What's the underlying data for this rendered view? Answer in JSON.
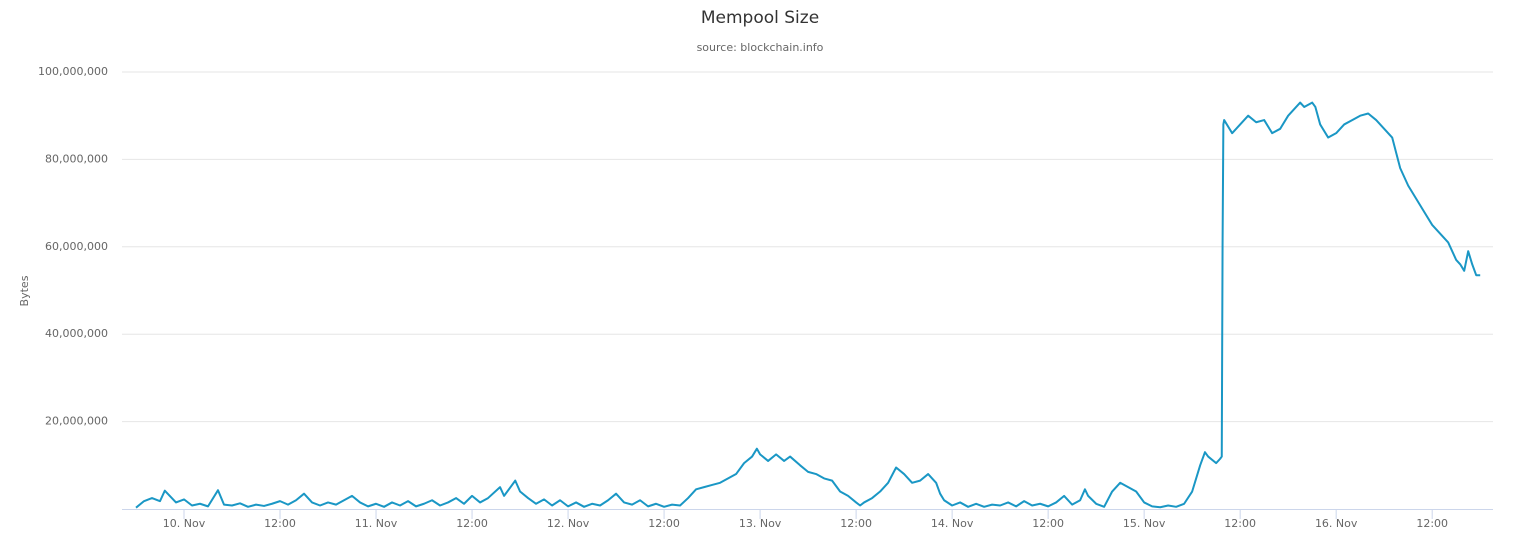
{
  "chart_data": {
    "type": "line",
    "title": "Mempool Size",
    "subtitle": "source: blockchain.info",
    "y_label": "Bytes",
    "color": "#1a97c5",
    "grid": true,
    "xlim": [
      -7.75,
      163.6
    ],
    "ylim": [
      0,
      100000000
    ],
    "xticks": [
      {
        "value": 0,
        "label": "10. Nov"
      },
      {
        "value": 12,
        "label": "12:00"
      },
      {
        "value": 24,
        "label": "11. Nov"
      },
      {
        "value": 36,
        "label": "12:00"
      },
      {
        "value": 48,
        "label": "12. Nov"
      },
      {
        "value": 60,
        "label": "12:00"
      },
      {
        "value": 72,
        "label": "13. Nov"
      },
      {
        "value": 84,
        "label": "12:00"
      },
      {
        "value": 96,
        "label": "14. Nov"
      },
      {
        "value": 108,
        "label": "12:00"
      },
      {
        "value": 120,
        "label": "15. Nov"
      },
      {
        "value": 132,
        "label": "12:00"
      },
      {
        "value": 144,
        "label": "16. Nov"
      },
      {
        "value": 156,
        "label": "12:00"
      }
    ],
    "yticks": [
      {
        "value": 20000000,
        "label": "20,000,000"
      },
      {
        "value": 40000000,
        "label": "40,000,000"
      },
      {
        "value": 60000000,
        "label": "60,000,000"
      },
      {
        "value": 80000000,
        "label": "80,000,000"
      },
      {
        "value": 100000000,
        "label": "100,000,000"
      }
    ],
    "x": [
      -6,
      -5,
      -4,
      -3,
      -2.4,
      -1,
      0,
      1,
      2,
      3,
      4.25,
      5,
      6,
      7,
      8,
      9,
      10,
      11,
      12,
      13,
      14,
      15,
      16,
      17,
      18,
      19,
      20,
      21,
      22,
      23,
      24,
      25,
      26,
      27,
      28,
      29,
      30,
      31,
      32,
      33,
      34,
      35,
      36,
      37,
      38,
      39.5,
      40,
      41.4,
      42,
      43,
      44,
      45,
      46,
      47,
      48,
      49,
      50,
      51,
      52,
      53,
      54,
      55,
      56,
      57,
      58,
      59,
      60,
      61,
      62,
      63,
      64,
      65,
      66,
      67,
      68,
      69,
      70,
      71,
      71.6,
      72,
      73,
      74,
      75,
      75.75,
      77,
      78,
      79,
      80,
      81,
      82,
      83,
      84,
      84.5,
      85,
      86,
      87,
      88,
      89,
      90,
      91,
      92,
      93,
      94,
      94.5,
      95,
      96,
      97,
      98,
      99,
      100,
      101,
      102,
      103,
      104,
      105,
      106,
      107,
      108,
      109,
      110,
      111,
      112,
      112.6,
      113,
      114,
      115,
      116,
      117,
      118,
      119,
      120,
      121,
      122,
      123,
      124,
      125,
      126,
      127,
      127.6,
      128,
      129,
      129.5,
      129.7,
      129.8,
      129.9,
      130,
      131,
      132,
      133,
      134,
      135,
      136,
      137,
      138,
      139.5,
      140,
      141,
      141.4,
      142,
      143,
      144,
      145,
      146,
      147,
      148,
      149,
      150,
      151,
      152,
      153,
      154,
      155,
      156,
      157,
      158,
      159,
      159.5,
      160,
      160.5,
      161,
      161.5,
      162
    ],
    "values": [
      300000,
      1800000,
      2500000,
      1800000,
      4200000,
      1500000,
      2200000,
      800000,
      1200000,
      600000,
      4300000,
      1000000,
      800000,
      1300000,
      500000,
      1000000,
      700000,
      1200000,
      1800000,
      1000000,
      2000000,
      3500000,
      1500000,
      800000,
      1500000,
      1000000,
      2000000,
      3000000,
      1500000,
      600000,
      1200000,
      500000,
      1500000,
      800000,
      1800000,
      600000,
      1200000,
      2000000,
      800000,
      1500000,
      2500000,
      1200000,
      3000000,
      1500000,
      2500000,
      5000000,
      3000000,
      6500000,
      4000000,
      2500000,
      1200000,
      2200000,
      800000,
      2000000,
      600000,
      1500000,
      500000,
      1200000,
      800000,
      2000000,
      3500000,
      1500000,
      1000000,
      2000000,
      600000,
      1200000,
      500000,
      1000000,
      800000,
      2500000,
      4500000,
      5000000,
      5500000,
      6000000,
      7000000,
      8000000,
      10500000,
      12000000,
      13800000,
      12500000,
      11000000,
      12500000,
      11000000,
      12000000,
      10000000,
      8500000,
      8000000,
      7000000,
      6500000,
      4000000,
      3000000,
      1500000,
      800000,
      1500000,
      2500000,
      4000000,
      6000000,
      9500000,
      8000000,
      6000000,
      6500000,
      8000000,
      6000000,
      3500000,
      2000000,
      800000,
      1500000,
      500000,
      1200000,
      500000,
      1000000,
      800000,
      1500000,
      600000,
      1800000,
      800000,
      1200000,
      600000,
      1500000,
      3000000,
      1000000,
      2000000,
      4500000,
      3000000,
      1200000,
      500000,
      4000000,
      6000000,
      5000000,
      4000000,
      1500000,
      600000,
      400000,
      800000,
      500000,
      1200000,
      4000000,
      10000000,
      13000000,
      12000000,
      10500000,
      11500000,
      12000000,
      60000000,
      88000000,
      89000000,
      86000000,
      88000000,
      90000000,
      88500000,
      89000000,
      86000000,
      87000000,
      90000000,
      93000000,
      92000000,
      93000000,
      92000000,
      88000000,
      85000000,
      86000000,
      88000000,
      89000000,
      90000000,
      90500000,
      89000000,
      87000000,
      85000000,
      78000000,
      74000000,
      71000000,
      68000000,
      65000000,
      63000000,
      61000000,
      57000000,
      56000000,
      54500000,
      59000000,
      56000000,
      53500000,
      53500000
    ]
  }
}
